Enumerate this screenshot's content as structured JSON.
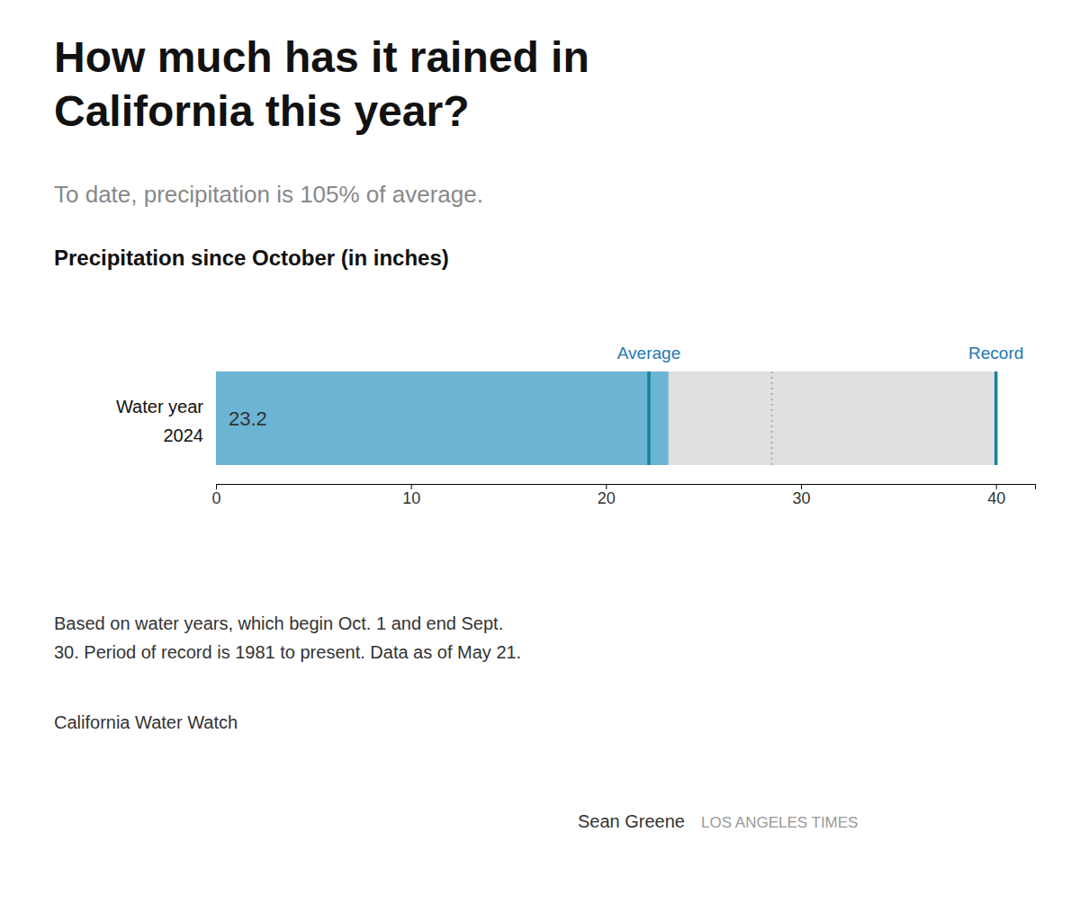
{
  "chart_data": {
    "type": "bar",
    "orientation": "horizontal",
    "title": [
      "How much has it rained in",
      "California this year?"
    ],
    "subtitle": "To date, precipitation is 105% of average.",
    "xlabel": "Precipitation since October (in inches)",
    "ylabel": "Water year",
    "categories": [
      "2024"
    ],
    "values": [
      23.2
    ],
    "color": "#6cb4d4",
    "data_labels": true,
    "background": {
      "values": [
        40.0
      ],
      "color": "#e0e0e0"
    },
    "reference_lines": [
      {
        "value": 22.2,
        "color": "#1a7fa0"
      },
      {
        "value": 28.5,
        "color": "#aaaaaa",
        "line_style": "dotted"
      },
      {
        "value": 40.0,
        "color": "#1a7fa0"
      }
    ],
    "annotations": [
      {
        "text": "Average",
        "x": 22.2
      },
      {
        "text": "Record",
        "x": 40.0
      }
    ],
    "xlim": [
      0,
      42
    ],
    "xticks": [
      0,
      10,
      20,
      30,
      40
    ],
    "grid": false,
    "footnote": [
      "Based on water years, which begin Oct. 1 and end Sept.",
      "30. Period of record is 1981 to present. Data as of May 21."
    ],
    "source": "California Water Watch",
    "credit": "Sean Greene",
    "credit_outlet": "LOS ANGELES TIMES"
  }
}
